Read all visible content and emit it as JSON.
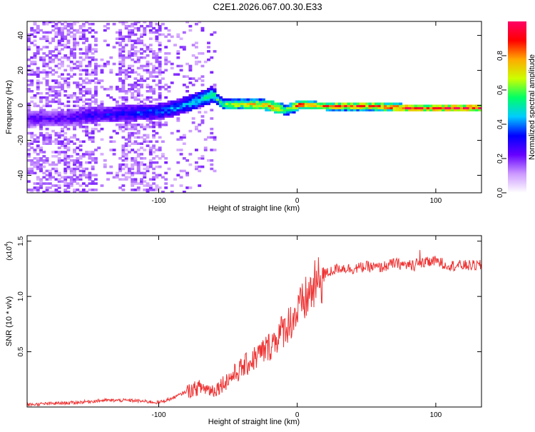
{
  "title": "C2E1.2026.067.00.30.E33",
  "chart_data": [
    {
      "type": "heatmap",
      "title": "C2E1.2026.067.00.30.E33",
      "xlabel": "Height of straight line (km)",
      "ylabel": "Frequency (Hz)",
      "xlim": [
        -195,
        133
      ],
      "ylim": [
        -50,
        48
      ],
      "xticks": [
        "-100",
        "0",
        "100"
      ],
      "yticks": [
        "-40",
        "-20",
        "0",
        "20",
        "40"
      ],
      "colorbar": {
        "label": "Normalized spectral amplitude",
        "range": [
          0,
          1
        ],
        "ticks": [
          "0.0",
          "0.2",
          "0.4",
          "0.6",
          "0.8"
        ],
        "colors": [
          "#ffffff",
          "#cc99ff",
          "#6600ff",
          "#0000ff",
          "#00ccff",
          "#00ff66",
          "#ccff00",
          "#ffaa00",
          "#ff0000",
          "#ff0066"
        ]
      },
      "ridge": {
        "x": [
          -170,
          -150,
          -125,
          -100,
          -85,
          -70,
          -62,
          -55,
          -40,
          -25,
          -15,
          -10,
          -5,
          0,
          20,
          50,
          80,
          100,
          133
        ],
        "frequency": [
          -8,
          -6,
          -5,
          -4,
          -1,
          3,
          6,
          0,
          0,
          0,
          -2,
          -3,
          -2,
          0,
          -1,
          -1,
          -2,
          -2,
          -2
        ],
        "amplitude": [
          0.25,
          0.3,
          0.35,
          0.4,
          0.45,
          0.5,
          0.55,
          0.6,
          0.75,
          0.8,
          0.85,
          0.6,
          0.7,
          0.9,
          0.85,
          0.9,
          0.92,
          0.92,
          0.95
        ]
      }
    },
    {
      "type": "line",
      "xlabel": "Height of straight line (km)",
      "ylabel": "SNR (10 * v/v)",
      "scale_label": "(x10",
      "scale_exponent": "4",
      "line_color": "#ee3333",
      "xlim": [
        -195,
        133
      ],
      "ylim": [
        0,
        1.55
      ],
      "xticks": [
        "-100",
        "0",
        "100"
      ],
      "yticks": [
        "0.5",
        "1.0",
        "1.5"
      ],
      "series": [
        {
          "name": "SNR",
          "x": [
            -195,
            -180,
            -160,
            -140,
            -120,
            -100,
            -90,
            -80,
            -70,
            -60,
            -50,
            -40,
            -30,
            -20,
            -10,
            0,
            10,
            20,
            30,
            40,
            50,
            60,
            70,
            80,
            90,
            100,
            110,
            120,
            133
          ],
          "values": [
            0.02,
            0.03,
            0.04,
            0.06,
            0.06,
            0.04,
            0.08,
            0.14,
            0.18,
            0.15,
            0.25,
            0.35,
            0.45,
            0.55,
            0.7,
            0.85,
            1.05,
            1.2,
            1.26,
            1.25,
            1.27,
            1.26,
            1.3,
            1.28,
            1.3,
            1.32,
            1.28,
            1.28,
            1.28
          ]
        }
      ]
    }
  ]
}
